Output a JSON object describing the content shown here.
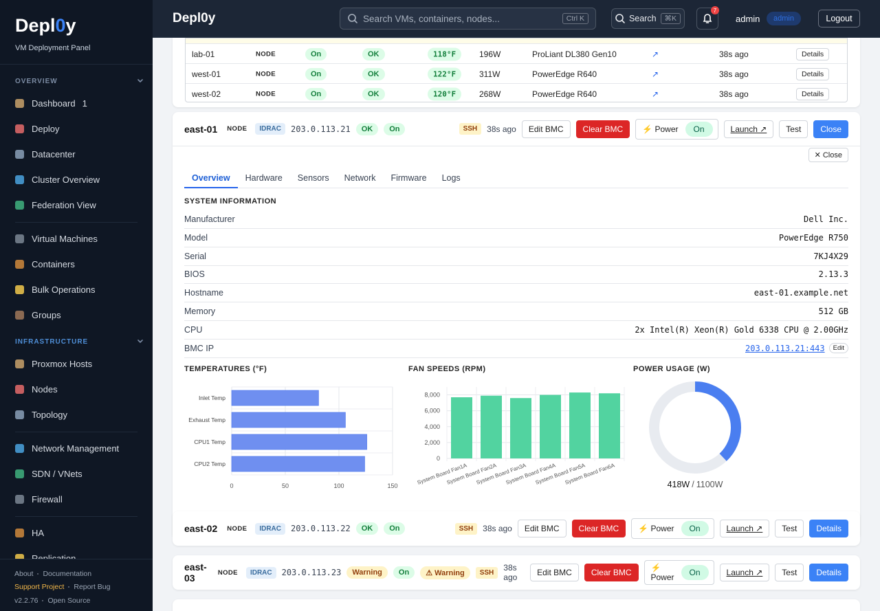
{
  "sidebar": {
    "brand": "Depl0y",
    "subtitle": "VM Deployment Panel",
    "sections": [
      {
        "title": "OVERVIEW",
        "groups": [
          [
            {
              "label": "Dashboard",
              "badge": "1"
            },
            {
              "label": "Deploy"
            },
            {
              "label": "Datacenter"
            },
            {
              "label": "Cluster Overview"
            },
            {
              "label": "Federation View"
            }
          ],
          [
            {
              "label": "Virtual Machines"
            },
            {
              "label": "Containers"
            },
            {
              "label": "Bulk Operations"
            },
            {
              "label": "Groups"
            }
          ]
        ]
      },
      {
        "title": "INFRASTRUCTURE",
        "groups": [
          [
            {
              "label": "Proxmox Hosts"
            },
            {
              "label": "Nodes"
            },
            {
              "label": "Topology"
            }
          ],
          [
            {
              "label": "Network Management"
            },
            {
              "label": "SDN / VNets"
            },
            {
              "label": "Firewall"
            }
          ],
          [
            {
              "label": "HA"
            },
            {
              "label": "Replication"
            }
          ]
        ]
      }
    ],
    "footer": [
      [
        "About",
        "Documentation"
      ],
      [
        "Support Project",
        "Report Bug"
      ],
      [
        "v2.2.76",
        "Open Source"
      ]
    ]
  },
  "topbar": {
    "brand": "Depl0y",
    "search_placeholder": "Search VMs, containers, nodes...",
    "search_kbd": "Ctrl K",
    "search_button": "Search",
    "search_button_kbd": "⌘K",
    "notifications": "7",
    "user": "admin",
    "role": "admin",
    "logout": "Logout"
  },
  "table_rows": [
    {
      "name": "lab-01",
      "type": "NODE",
      "power": "On",
      "health": "OK",
      "temp": "118°F",
      "watts": "196W",
      "model": "ProLiant DL380 Gen10",
      "link": "↗",
      "seen": "38s ago",
      "action": "Details"
    },
    {
      "name": "west-01",
      "type": "NODE",
      "power": "On",
      "health": "OK",
      "temp": "122°F",
      "watts": "311W",
      "model": "PowerEdge R640",
      "link": "↗",
      "seen": "38s ago",
      "action": "Details"
    },
    {
      "name": "west-02",
      "type": "NODE",
      "power": "On",
      "health": "OK",
      "temp": "120°F",
      "watts": "268W",
      "model": "PowerEdge R640",
      "link": "↗",
      "seen": "38s ago",
      "action": "Details"
    }
  ],
  "nodes": [
    {
      "name": "east-01",
      "type": "NODE",
      "bmc": "IDRAC",
      "ip": "203.0.113.21",
      "badges": [
        {
          "text": "OK",
          "tone": "green"
        },
        {
          "text": "On",
          "tone": "green"
        }
      ],
      "ssh": "SSH",
      "seen": "38s ago",
      "edit": "Edit BMC",
      "clear": "Clear BMC",
      "power": "⚡ Power",
      "power_state": "On",
      "launch": "Launch ↗",
      "test": "Test",
      "primary": "Close",
      "details": {
        "close": "✕ Close",
        "tabs": [
          "Overview",
          "Hardware",
          "Sensors",
          "Network",
          "Firmware",
          "Logs"
        ],
        "active_tab": 0,
        "section_title": "SYSTEM INFORMATION",
        "info": [
          {
            "label": "Manufacturer",
            "value": "Dell Inc."
          },
          {
            "label": "Model",
            "value": "PowerEdge R750"
          },
          {
            "label": "Serial",
            "value": "7KJ4X29"
          },
          {
            "label": "BIOS",
            "value": "2.13.3"
          },
          {
            "label": "Hostname",
            "value": "east-01.example.net"
          },
          {
            "label": "Memory",
            "value": "512 GB"
          },
          {
            "label": "CPU",
            "value": "2x Intel(R) Xeon(R) Gold 6338 CPU @ 2.00GHz"
          },
          {
            "label": "BMC IP",
            "value": "203.0.113.21:443",
            "link": true,
            "edit": "Edit"
          }
        ]
      }
    },
    {
      "name": "east-02",
      "type": "NODE",
      "bmc": "IDRAC",
      "ip": "203.0.113.22",
      "badges": [
        {
          "text": "OK",
          "tone": "green"
        },
        {
          "text": "On",
          "tone": "green"
        }
      ],
      "ssh": "SSH",
      "seen": "38s ago",
      "edit": "Edit BMC",
      "clear": "Clear BMC",
      "power": "⚡ Power",
      "power_state": "On",
      "launch": "Launch ↗",
      "test": "Test",
      "primary": "Details"
    },
    {
      "name": "east-03",
      "type": "NODE",
      "bmc": "IDRAC",
      "ip": "203.0.113.23",
      "badges": [
        {
          "text": "Warning",
          "tone": "yellow"
        },
        {
          "text": "On",
          "tone": "green"
        },
        {
          "text": "⚠ Warning",
          "tone": "yellow"
        }
      ],
      "ssh": "SSH",
      "seen": "38s ago",
      "edit": "Edit BMC",
      "clear": "Clear BMC",
      "power": "⚡ Power",
      "power_state": "On",
      "launch": "Launch ↗",
      "test": "Test",
      "primary": "Details"
    }
  ],
  "chart_data": [
    {
      "type": "hbar",
      "title": "TEMPERATURES (°F)",
      "categories": [
        "Inlet Temp",
        "Exhaust Temp",
        "CPU1 Temp",
        "CPU2 Temp"
      ],
      "values": [
        81,
        106,
        126,
        124
      ],
      "color": "#6f8ff0",
      "xlim": [
        0,
        150
      ],
      "xticks": [
        0,
        50,
        100,
        150
      ],
      "grid": true
    },
    {
      "type": "bar",
      "title": "FAN SPEEDS (RPM)",
      "categories": [
        "System Board Fan1A",
        "System Board Fan2A",
        "System Board Fan3A",
        "System Board Fan4A",
        "System Board Fan5A",
        "System Board Fan6A"
      ],
      "values": [
        7700,
        7900,
        7600,
        8000,
        8300,
        8200
      ],
      "color": "#52d3a0",
      "ylim": [
        0,
        9000
      ],
      "yticks": [
        0,
        {
          "value": 2000,
          "label": "2,000"
        },
        {
          "value": 4000,
          "label": "4,000"
        },
        {
          "value": 6000,
          "label": "6,000"
        },
        {
          "value": 8000,
          "label": "8,000"
        }
      ],
      "grid": true
    },
    {
      "type": "donut",
      "title": "POWER USAGE (W)",
      "values": [
        418
      ],
      "value_labels": [
        "418W"
      ],
      "max": 1100,
      "max_label": "1100W",
      "divider": "/",
      "color": "#4a7ef0",
      "track_color": "#e8ebf0"
    }
  ]
}
